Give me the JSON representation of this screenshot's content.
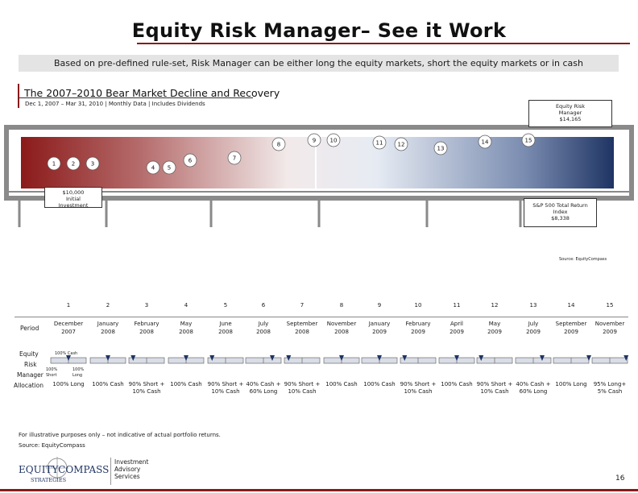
{
  "header": {
    "title": "Equity Risk Manager– See it Work",
    "subtitle": "Based on pre-defined rule-set, Risk Manager can be either long the equity markets, short the equity markets or in cash"
  },
  "chart": {
    "title": "The 2007–2010 Bear Market Decline and Recovery",
    "subtitle": "Dec 1, 2007 – Mar 31, 2010 | Monthly Data | Includes Dividends",
    "erm_label_line1": "Equity Risk",
    "erm_label_line2": "Manager",
    "erm_value": "$14,165",
    "initial_line1": "$10,000",
    "initial_line2": "Initial",
    "initial_line3": "Investment",
    "sp_line1": "S&P 500 Total Return",
    "sp_line2": "Index",
    "sp_value": "$8,338",
    "source": "Source: EquityCompass",
    "markers": [
      "1",
      "2",
      "3",
      "4",
      "5",
      "6",
      "7",
      "8",
      "9",
      "10",
      "11",
      "12",
      "13",
      "14",
      "15"
    ],
    "colors": {
      "red": "#8b1a1a",
      "navy": "#1f3463",
      "frame": "#8a8a8a"
    }
  },
  "table": {
    "columns": [
      {
        "num": "1",
        "month": "December",
        "year": "2007",
        "alloc1": "100% Long",
        "alloc2": ""
      },
      {
        "num": "2",
        "month": "January",
        "year": "2008",
        "alloc1": "100% Cash",
        "alloc2": ""
      },
      {
        "num": "3",
        "month": "February",
        "year": "2008",
        "alloc1": "90% Short +",
        "alloc2": "10% Cash"
      },
      {
        "num": "4",
        "month": "May",
        "year": "2008",
        "alloc1": "100% Cash",
        "alloc2": ""
      },
      {
        "num": "5",
        "month": "June",
        "year": "2008",
        "alloc1": "90% Short +",
        "alloc2": "10% Cash"
      },
      {
        "num": "6",
        "month": "July",
        "year": "2008",
        "alloc1": "40% Cash +",
        "alloc2": "60% Long"
      },
      {
        "num": "7",
        "month": "September",
        "year": "2008",
        "alloc1": "90% Short +",
        "alloc2": "10% Cash"
      },
      {
        "num": "8",
        "month": "November",
        "year": "2008",
        "alloc1": "100% Cash",
        "alloc2": ""
      },
      {
        "num": "9",
        "month": "January",
        "year": "2009",
        "alloc1": "100% Cash",
        "alloc2": ""
      },
      {
        "num": "10",
        "month": "February",
        "year": "2009",
        "alloc1": "90% Short +",
        "alloc2": "10% Cash"
      },
      {
        "num": "11",
        "month": "April",
        "year": "2009",
        "alloc1": "100% Cash",
        "alloc2": ""
      },
      {
        "num": "12",
        "month": "May",
        "year": "2009",
        "alloc1": "90% Short +",
        "alloc2": "10% Cash"
      },
      {
        "num": "13",
        "month": "July",
        "year": "2009",
        "alloc1": "40% Cash +",
        "alloc2": "60% Long"
      },
      {
        "num": "14",
        "month": "September",
        "year": "2009",
        "alloc1": "100% Long",
        "alloc2": ""
      },
      {
        "num": "15",
        "month": "November",
        "year": "2009",
        "alloc1": "95% Long+",
        "alloc2": "5% Cash"
      }
    ],
    "row_period": "Period",
    "row_equity": "Equity",
    "row_risk": "Risk",
    "row_manager": "Manager",
    "row_allocation": "Allocation",
    "gauge_cash": "100% Cash",
    "gauge_short": "Short",
    "gauge_long": "Long",
    "gauge_left_num": "100%",
    "gauge_right_num": "100%"
  },
  "footer": {
    "note": "For illustrative purposes only – not indicative of actual portfolio returns.",
    "source": "Source: EquityCompass",
    "logo_line1": "EQUITYCOMPASS",
    "logo_line2": "STRATEGIES",
    "services_line1": "Investment",
    "services_line2": "Advisory",
    "services_line3": "Services",
    "page_number": "16"
  }
}
